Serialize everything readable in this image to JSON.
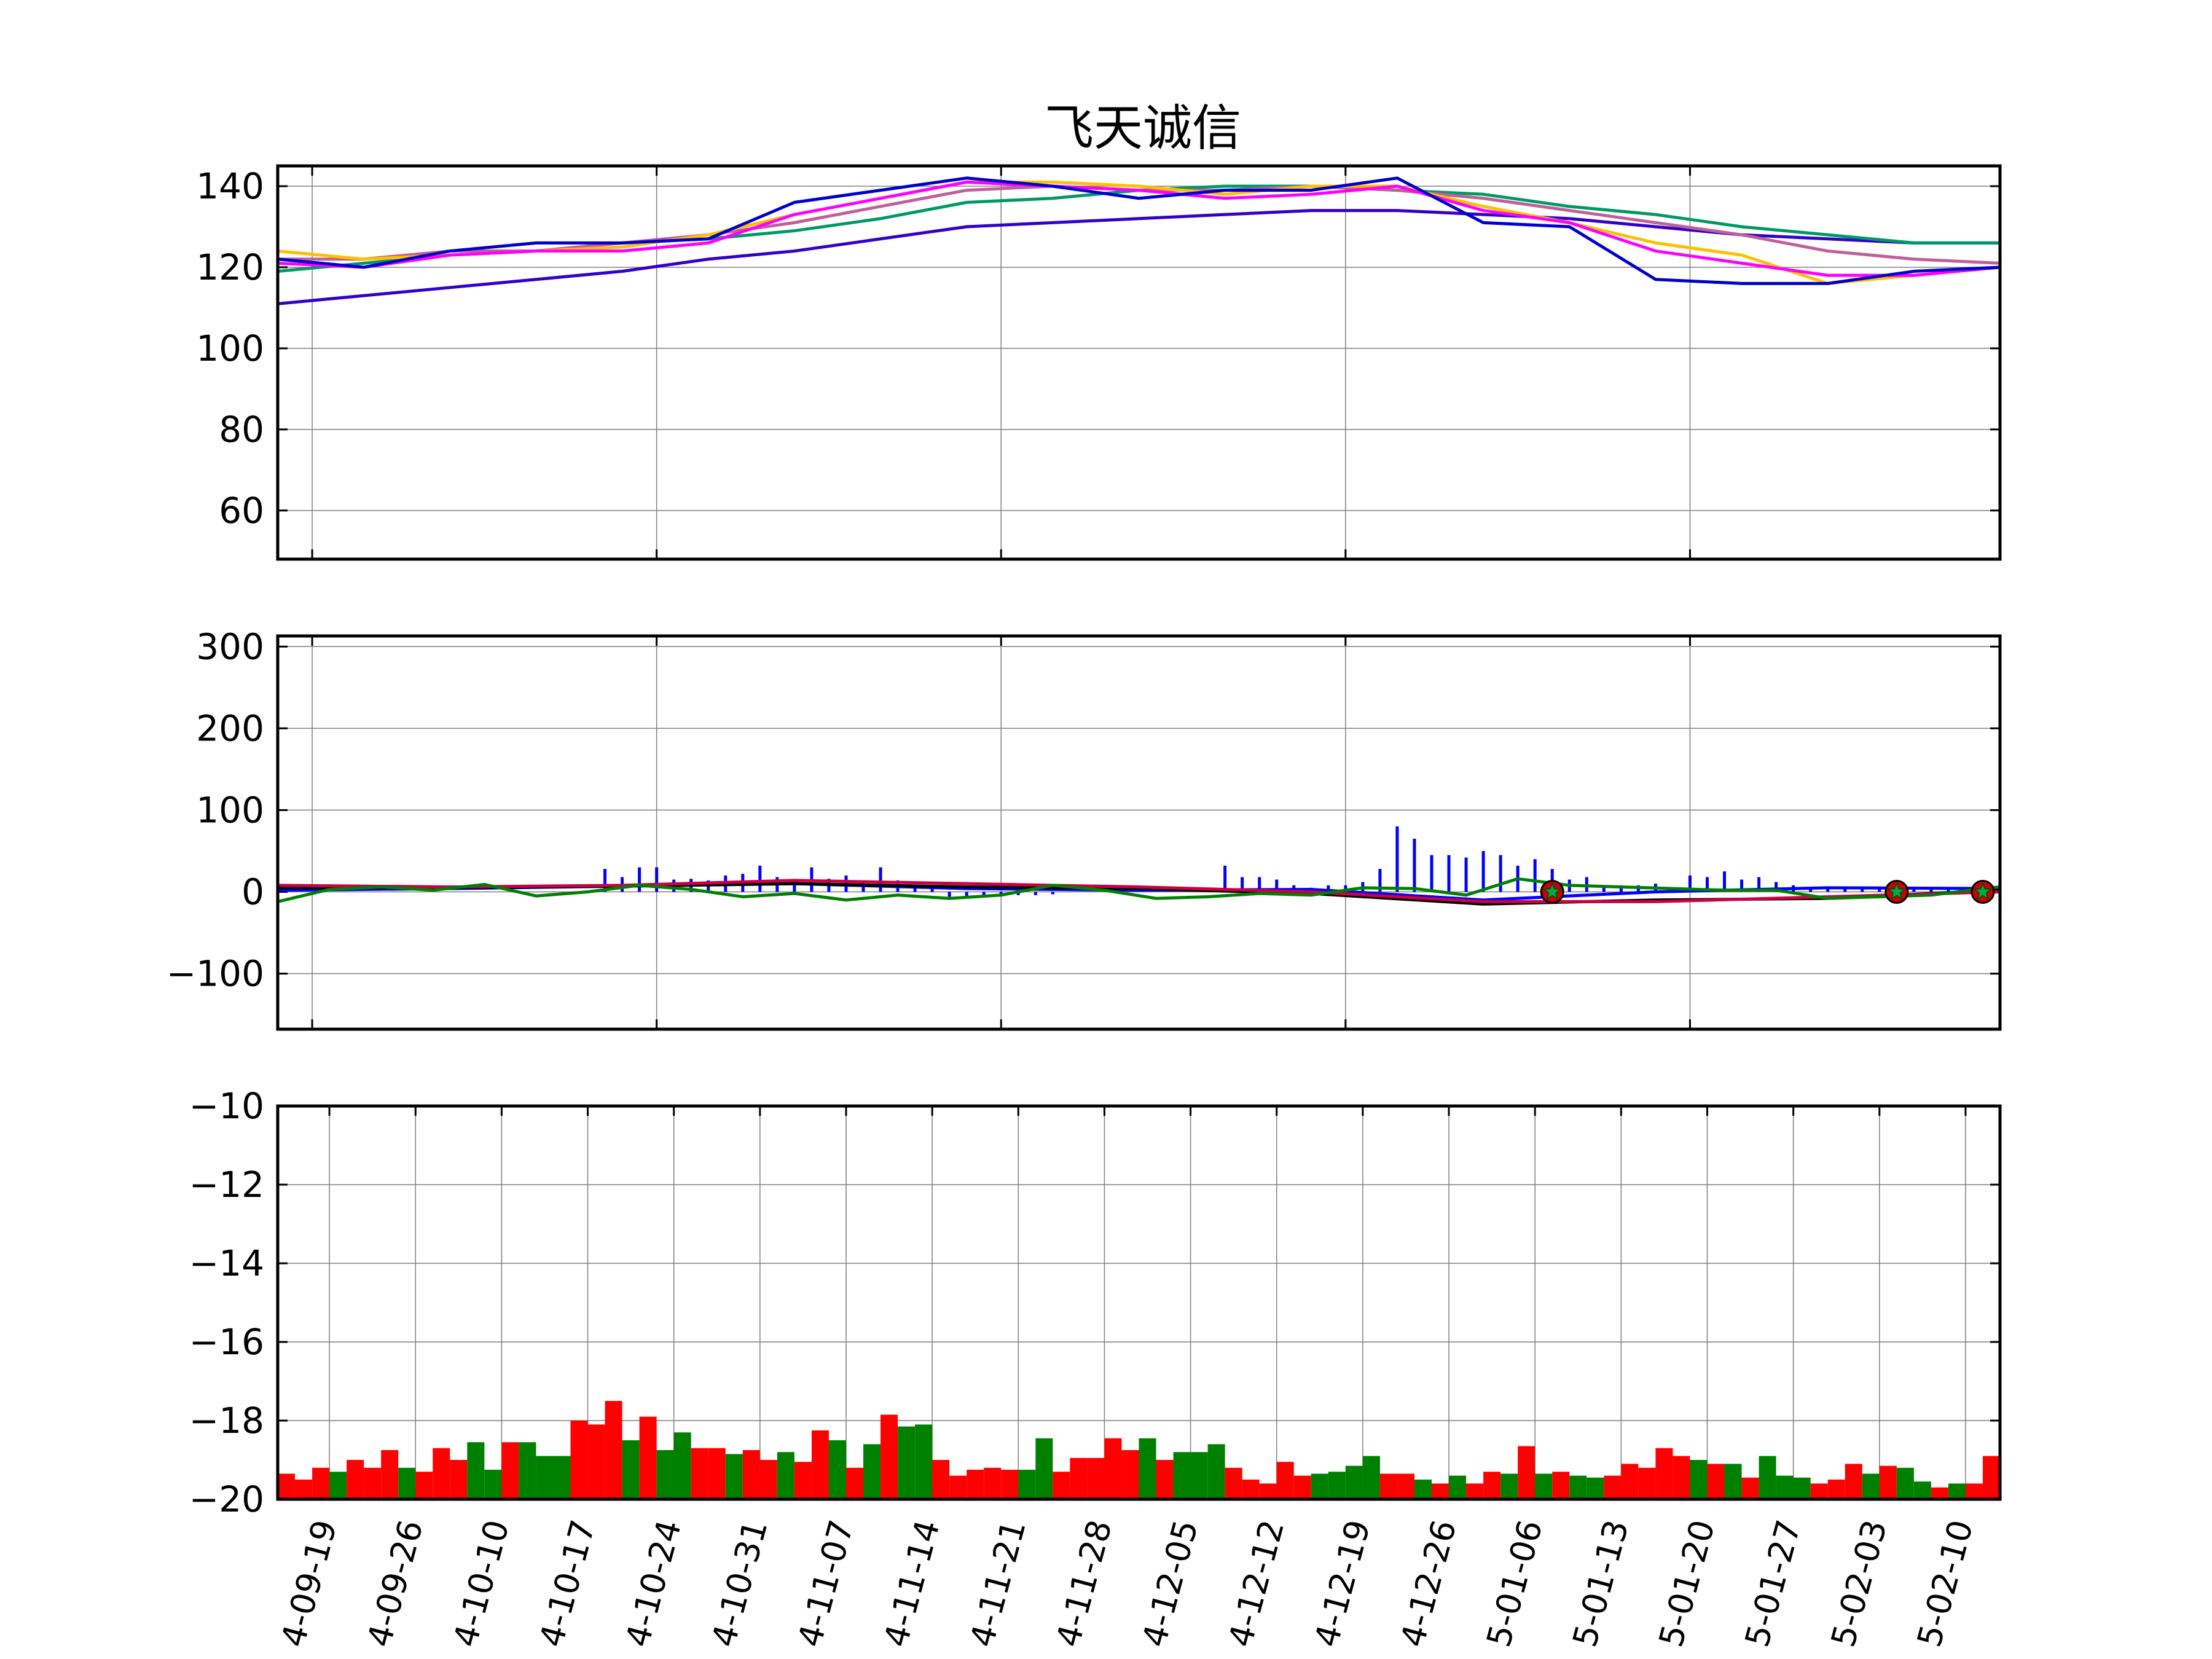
{
  "title": "飞天诚信",
  "colors": {
    "up": "#ff0000",
    "down": "#008000",
    "grid": "#808080",
    "ma_blue": "#0000cc",
    "ma_yellow": "#ffc000",
    "ma_magenta": "#ff00ff",
    "ma_pink": "#c0609a",
    "ma_green": "#009966",
    "ma_indigo": "#3300cc"
  },
  "chart_data": [
    {
      "type": "line",
      "name": "price",
      "ylim": [
        48,
        145
      ],
      "yticks": [
        60,
        80,
        100,
        120,
        140
      ],
      "x_range": [
        0,
        100
      ],
      "xgrid": [
        2,
        22,
        42,
        62,
        82
      ],
      "series": [
        {
          "color": "ma_indigo",
          "x": [
            0,
            5,
            10,
            15,
            20,
            25,
            30,
            35,
            40,
            45,
            50,
            55,
            60,
            65,
            70,
            75,
            80,
            85,
            90,
            95,
            100
          ],
          "y": [
            111,
            113,
            115,
            117,
            119,
            122,
            124,
            127,
            130,
            131,
            132,
            133,
            134,
            134,
            133,
            132,
            130,
            128,
            127,
            126,
            126
          ]
        },
        {
          "color": "ma_green",
          "x": [
            0,
            5,
            10,
            15,
            20,
            25,
            30,
            35,
            40,
            45,
            50,
            55,
            60,
            65,
            70,
            75,
            80,
            85,
            90,
            95,
            100
          ],
          "y": [
            119,
            121,
            123,
            124,
            126,
            127,
            129,
            132,
            136,
            137,
            139,
            140,
            140,
            139,
            138,
            135,
            133,
            130,
            128,
            126,
            126
          ]
        },
        {
          "color": "ma_pink",
          "x": [
            0,
            5,
            10,
            15,
            20,
            25,
            30,
            35,
            40,
            45,
            50,
            55,
            60,
            65,
            70,
            75,
            80,
            85,
            90,
            95,
            100
          ],
          "y": [
            122,
            122,
            124,
            124,
            126,
            128,
            131,
            135,
            139,
            140,
            139,
            139,
            140,
            139,
            137,
            134,
            131,
            128,
            124,
            122,
            121
          ]
        },
        {
          "color": "ma_yellow",
          "x": [
            0,
            5,
            10,
            15,
            20,
            25,
            30,
            35,
            40,
            45,
            50,
            55,
            60,
            65,
            70,
            75,
            80,
            85,
            90,
            95,
            100
          ],
          "y": [
            124,
            122,
            123,
            124,
            125,
            128,
            133,
            137,
            141,
            141,
            140,
            138,
            140,
            140,
            135,
            131,
            126,
            123,
            116,
            118,
            120
          ]
        },
        {
          "color": "ma_magenta",
          "x": [
            0,
            5,
            10,
            15,
            20,
            25,
            30,
            35,
            40,
            45,
            50,
            55,
            60,
            65,
            70,
            75,
            80,
            85,
            90,
            95,
            100
          ],
          "y": [
            121,
            120,
            123,
            124,
            124,
            126,
            133,
            137,
            141,
            140,
            139,
            137,
            138,
            140,
            134,
            131,
            124,
            121,
            118,
            118,
            120
          ]
        },
        {
          "color": "ma_blue",
          "x": [
            0,
            5,
            10,
            15,
            20,
            25,
            30,
            35,
            40,
            45,
            50,
            55,
            60,
            65,
            70,
            75,
            80,
            85,
            90,
            95,
            100
          ],
          "y": [
            122,
            120,
            124,
            126,
            126,
            127,
            136,
            139,
            142,
            140,
            137,
            139,
            139,
            142,
            131,
            130,
            117,
            116,
            116,
            119,
            120
          ]
        }
      ]
    },
    {
      "type": "bar",
      "name": "macd",
      "ylim": [
        -168,
        313
      ],
      "yticks": [
        -100,
        0,
        100,
        200,
        300
      ],
      "x_range": [
        0,
        100
      ],
      "xgrid": [
        2,
        22,
        42,
        62,
        82
      ],
      "bars_x": [
        19,
        20,
        21,
        22,
        23,
        24,
        25,
        26,
        27,
        28,
        29,
        30,
        31,
        32,
        33,
        34,
        35,
        36,
        37,
        38,
        39,
        40,
        41,
        42,
        43,
        44,
        45,
        55,
        56,
        57,
        58,
        59,
        60,
        61,
        62,
        63,
        64,
        65,
        66,
        67,
        68,
        69,
        70,
        71,
        72,
        73,
        74,
        75,
        76,
        77,
        78,
        79,
        80,
        81,
        82,
        83,
        84,
        85,
        86,
        87,
        88,
        89,
        90,
        91,
        92,
        93,
        94,
        95,
        96,
        97
      ],
      "bars_y": [
        28,
        18,
        30,
        30,
        15,
        16,
        14,
        20,
        22,
        32,
        18,
        15,
        30,
        16,
        20,
        14,
        30,
        14,
        8,
        6,
        -6,
        -6,
        -5,
        -5,
        -4,
        -4,
        -3,
        32,
        18,
        18,
        15,
        8,
        5,
        8,
        8,
        12,
        28,
        80,
        65,
        45,
        45,
        42,
        50,
        45,
        32,
        40,
        28,
        15,
        18,
        8,
        8,
        8,
        10,
        5,
        20,
        18,
        25,
        15,
        18,
        12,
        8,
        6,
        5,
        4,
        5,
        5,
        4,
        5,
        4,
        4
      ],
      "series": [
        {
          "color": "#0000ff",
          "x": [
            0,
            10,
            20,
            30,
            40,
            50,
            60,
            70,
            80,
            90,
            100
          ],
          "y": [
            2,
            4,
            7,
            10,
            4,
            2,
            3,
            -10,
            0,
            5,
            4
          ]
        },
        {
          "color": "#000000",
          "x": [
            0,
            10,
            20,
            30,
            40,
            50,
            60,
            70,
            80,
            90,
            100
          ],
          "y": [
            5,
            5,
            7,
            10,
            6,
            4,
            -2,
            -15,
            -10,
            -8,
            2
          ]
        },
        {
          "color": "#cc0044",
          "x": [
            0,
            10,
            20,
            30,
            40,
            50,
            60,
            70,
            80,
            90,
            100
          ],
          "y": [
            8,
            6,
            8,
            14,
            10,
            6,
            0,
            -12,
            -12,
            -6,
            0
          ]
        },
        {
          "color": "#008000",
          "x": [
            0,
            3,
            6,
            9,
            12,
            15,
            18,
            21,
            24,
            27,
            30,
            33,
            36,
            39,
            42,
            45,
            48,
            51,
            54,
            57,
            60,
            63,
            66,
            69,
            72,
            75,
            78,
            81,
            84,
            87,
            90,
            93,
            96,
            99,
            100
          ],
          "y": [
            -12,
            3,
            6,
            2,
            9,
            -5,
            0,
            8,
            3,
            -6,
            -2,
            -10,
            -4,
            -8,
            -4,
            8,
            2,
            -8,
            -6,
            -2,
            -4,
            5,
            4,
            -4,
            16,
            8,
            6,
            4,
            2,
            2,
            -8,
            -6,
            -4,
            4,
            6
          ]
        }
      ],
      "markers_x": [
        74,
        94,
        99
      ],
      "markers_y": [
        0,
        0,
        0
      ]
    },
    {
      "type": "bar",
      "name": "volume",
      "ylim": [
        -20,
        -10
      ],
      "yticks": [
        -10,
        -12,
        -14,
        -16,
        -18,
        -20
      ],
      "x_range": [
        0,
        100
      ],
      "x_labels": [
        {
          "x": 3,
          "label": "4-09-19"
        },
        {
          "x": 8,
          "label": "4-09-26"
        },
        {
          "x": 13,
          "label": "4-10-10"
        },
        {
          "x": 18,
          "label": "4-10-17"
        },
        {
          "x": 23,
          "label": "4-10-24"
        },
        {
          "x": 28,
          "label": "4-10-31"
        },
        {
          "x": 33,
          "label": "4-11-07"
        },
        {
          "x": 38,
          "label": "4-11-14"
        },
        {
          "x": 43,
          "label": "4-11-21"
        },
        {
          "x": 48,
          "label": "4-11-28"
        },
        {
          "x": 53,
          "label": "4-12-05"
        },
        {
          "x": 58,
          "label": "4-12-12"
        },
        {
          "x": 63,
          "label": "4-12-19"
        },
        {
          "x": 68,
          "label": "4-12-26"
        },
        {
          "x": 73,
          "label": "5-01-06"
        },
        {
          "x": 78,
          "label": "5-01-13"
        },
        {
          "x": 83,
          "label": "5-01-20"
        },
        {
          "x": 88,
          "label": "5-01-27"
        },
        {
          "x": 93,
          "label": "5-02-03"
        },
        {
          "x": 98,
          "label": "5-02-10"
        }
      ],
      "values": [
        -19.35,
        -19.5,
        -19.2,
        -19.3,
        -19,
        -19.2,
        -18.75,
        -19.2,
        -19.3,
        -18.7,
        -19,
        -18.55,
        -19.25,
        -18.55,
        -18.55,
        -18.9,
        -18.9,
        -18,
        -18.1,
        -17.5,
        -18.5,
        -17.9,
        -18.75,
        -18.3,
        -18.7,
        -18.7,
        -18.85,
        -18.75,
        -19,
        -18.8,
        -19.05,
        -18.25,
        -18.5,
        -19.2,
        -18.6,
        -17.85,
        -18.15,
        -18.1,
        -19,
        -19.4,
        -19.25,
        -19.2,
        -19.25,
        -19.25,
        -18.45,
        -19.3,
        -18.95,
        -18.95,
        -18.45,
        -18.75,
        -18.45,
        -19,
        -18.8,
        -18.8,
        -18.6,
        -19.2,
        -19.5,
        -19.6,
        -19.05,
        -19.4,
        -19.35,
        -19.3,
        -19.15,
        -18.9,
        -19.35,
        -19.35,
        -19.5,
        -19.6,
        -19.4,
        -19.6,
        -19.3,
        -19.35,
        -18.65,
        -19.35,
        -19.3,
        -19.4,
        -19.45,
        -19.4,
        -19.1,
        -19.2,
        -18.7,
        -18.9,
        -19,
        -19.1,
        -19.1,
        -19.45,
        -18.9,
        -19.4,
        -19.45,
        -19.6,
        -19.5,
        -19.1,
        -19.35,
        -19.15,
        -19.2,
        -19.55,
        -19.7,
        -19.6,
        -19.6,
        -18.9
      ],
      "colors": [
        "up",
        "up",
        "up",
        "down",
        "up",
        "up",
        "up",
        "down",
        "up",
        "up",
        "up",
        "down",
        "down",
        "up",
        "down",
        "down",
        "down",
        "up",
        "up",
        "up",
        "down",
        "up",
        "down",
        "down",
        "up",
        "up",
        "down",
        "up",
        "up",
        "down",
        "up",
        "up",
        "down",
        "up",
        "down",
        "up",
        "down",
        "down",
        "up",
        "up",
        "up",
        "up",
        "up",
        "down",
        "down",
        "up",
        "up",
        "up",
        "up",
        "up",
        "down",
        "up",
        "down",
        "down",
        "down",
        "up",
        "up",
        "up",
        "up",
        "up",
        "down",
        "down",
        "down",
        "down",
        "up",
        "up",
        "down",
        "up",
        "down",
        "up",
        "up",
        "down",
        "up",
        "down",
        "up",
        "down",
        "down",
        "up",
        "up",
        "up",
        "up",
        "up",
        "down",
        "up",
        "down",
        "up",
        "down",
        "down",
        "down",
        "up",
        "up",
        "up",
        "down",
        "up",
        "down",
        "down",
        "up",
        "down",
        "up",
        "up"
      ]
    }
  ]
}
